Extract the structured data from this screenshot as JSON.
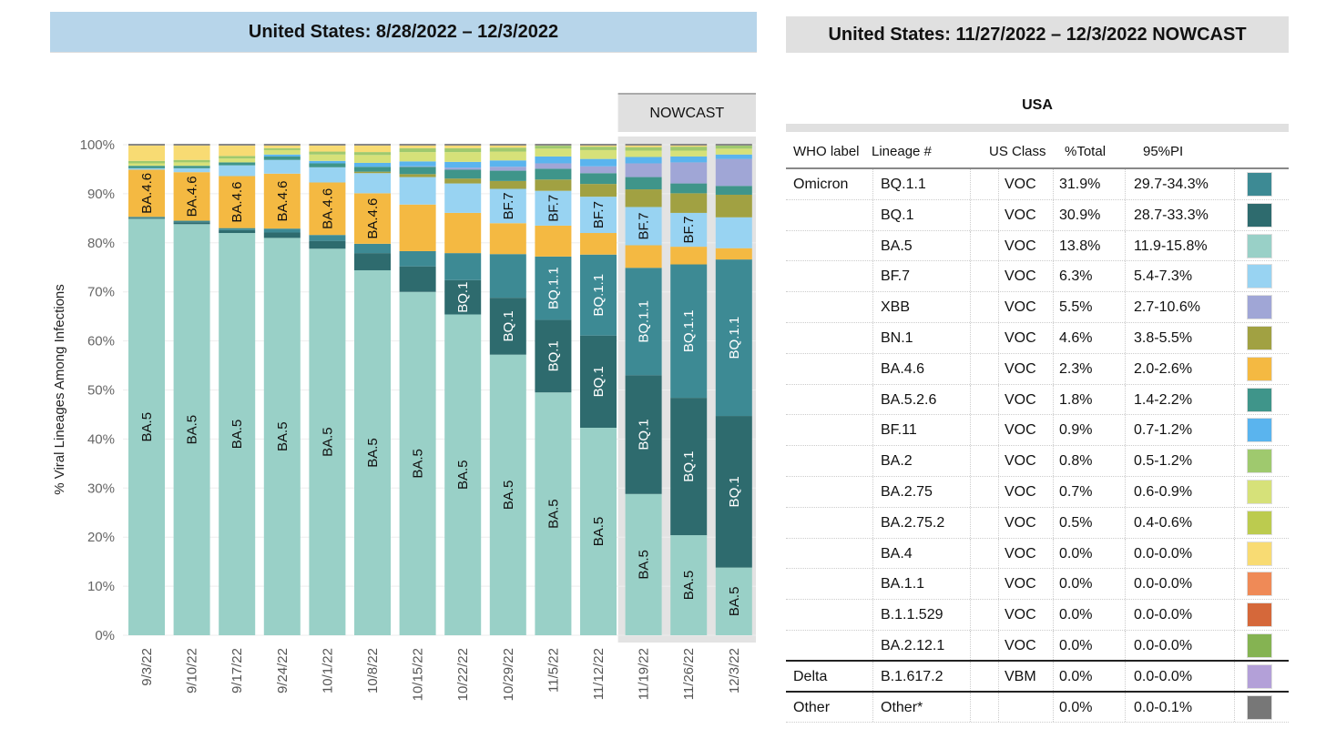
{
  "left_title": "United States: 8/28/2022 – 12/3/2022",
  "right_title": "United States: 11/27/2022 – 12/3/2022 NOWCAST",
  "chart_data": {
    "type": "bar",
    "stacked": true,
    "ylabel": "% Viral Lineages Among Infections",
    "ylim": [
      0,
      100
    ],
    "yticks": [
      "0%",
      "10%",
      "20%",
      "30%",
      "40%",
      "50%",
      "60%",
      "70%",
      "80%",
      "90%",
      "100%"
    ],
    "nowcast_label": "NOWCAST",
    "nowcast_from_index": 11,
    "categories": [
      "9/3/22",
      "9/10/22",
      "9/17/22",
      "9/24/22",
      "10/1/22",
      "10/8/22",
      "10/15/22",
      "10/22/22",
      "10/29/22",
      "11/5/22",
      "11/12/22",
      "11/19/22",
      "11/26/22",
      "12/3/22"
    ],
    "series": [
      {
        "name": "BA.5",
        "color": "#99d0c7",
        "text": "#111",
        "values": [
          84.9,
          83.8,
          82.0,
          81.0,
          78.8,
          74.4,
          70.0,
          65.4,
          57.2,
          49.5,
          42.3,
          28.8,
          20.4,
          13.8
        ]
      },
      {
        "name": "BQ.1",
        "color": "#2e6b6e",
        "text": "#fff",
        "values": [
          0.2,
          0.4,
          0.6,
          1.1,
          1.6,
          3.5,
          5.2,
          7.0,
          11.6,
          14.8,
          18.8,
          24.2,
          28.0,
          30.9
        ]
      },
      {
        "name": "BQ.1.1",
        "color": "#3d8a94",
        "text": "#fff",
        "values": [
          0.2,
          0.3,
          0.4,
          0.8,
          1.2,
          1.9,
          3.1,
          5.5,
          8.9,
          12.9,
          16.5,
          21.9,
          27.2,
          31.9
        ]
      },
      {
        "name": "BA.4.6",
        "color": "#f4b942",
        "text": "#111",
        "values": [
          9.6,
          9.9,
          10.6,
          11.2,
          10.7,
          10.3,
          9.5,
          8.2,
          6.3,
          6.3,
          4.4,
          4.6,
          3.6,
          2.3
        ]
      },
      {
        "name": "BF.7",
        "color": "#98d3f2",
        "text": "#111",
        "values": [
          0.3,
          0.8,
          2.2,
          2.8,
          3.1,
          4.1,
          5.6,
          6.0,
          7.0,
          7.1,
          7.4,
          7.8,
          6.9,
          6.3
        ]
      },
      {
        "name": "BN.1",
        "color": "#a1a142",
        "text": "#111",
        "values": [
          0,
          0,
          0,
          0,
          0,
          0.3,
          0.6,
          1.0,
          1.6,
          2.3,
          2.6,
          3.6,
          4.0,
          4.6
        ]
      },
      {
        "name": "BA.5.2.6",
        "color": "#3f958a",
        "text": "#fff",
        "values": [
          0.5,
          0.5,
          0.6,
          0.7,
          0.8,
          1.0,
          1.5,
          1.8,
          2.1,
          2.2,
          2.2,
          2.5,
          2.0,
          1.8
        ]
      },
      {
        "name": "XBB",
        "color": "#a0a6d6",
        "text": "#111",
        "values": [
          0,
          0,
          0,
          0,
          0,
          0,
          0.1,
          0.4,
          0.8,
          1.1,
          1.4,
          2.8,
          4.3,
          5.5
        ]
      },
      {
        "name": "BF.11",
        "color": "#5ab4ee",
        "text": "#111",
        "values": [
          0,
          0,
          0,
          0.4,
          0.5,
          0.8,
          1.0,
          1.2,
          1.3,
          1.4,
          1.5,
          1.3,
          1.2,
          0.9
        ]
      },
      {
        "name": "BA.2.75",
        "color": "#d6e179",
        "text": "#111",
        "values": [
          0.5,
          0.7,
          0.8,
          0.9,
          1.3,
          1.6,
          1.9,
          2.0,
          1.8,
          1.6,
          1.8,
          1.3,
          1.2,
          1.2
        ]
      },
      {
        "name": "BA.2",
        "color": "#9fc96e",
        "text": "#111",
        "values": [
          0.5,
          0.5,
          0.5,
          0.4,
          0.6,
          0.6,
          0.8,
          0.8,
          0.8,
          0.6,
          0.7,
          0.7,
          0.8,
          0.8
        ]
      },
      {
        "name": "BA.4",
        "color": "#f8db73",
        "text": "#111",
        "values": [
          3.3,
          3.1,
          2.3,
          0.7,
          1.4,
          1.5,
          0.7,
          0.7,
          0.6,
          0.2,
          0.4,
          0.5,
          0.4,
          0
        ]
      }
    ],
    "bar_labels": [
      [
        "BA.5",
        "BA.4.6"
      ],
      [
        "BA.5",
        "BA.4.6"
      ],
      [
        "BA.5",
        "BA.4.6"
      ],
      [
        "BA.5",
        "BA.4.6"
      ],
      [
        "BA.5",
        "BA.4.6"
      ],
      [
        "BA.5",
        "BA.4.6"
      ],
      [
        "BA.5"
      ],
      [
        "BA.5",
        "BQ.1"
      ],
      [
        "BA.5",
        "BQ.1",
        "BF.7"
      ],
      [
        "BA.5",
        "BQ.1",
        "BQ.1.1",
        "BF.7"
      ],
      [
        "BA.5",
        "BQ.1",
        "BQ.1.1",
        "BF.7"
      ],
      [
        "BA.5",
        "BQ.1",
        "BQ.1.1",
        "BF.7"
      ],
      [
        "BA.5",
        "BQ.1",
        "BQ.1.1",
        "BF.7"
      ],
      [
        "BA.5",
        "BQ.1",
        "BQ.1.1"
      ]
    ]
  },
  "table": {
    "region": "USA",
    "headers": [
      "WHO label",
      "Lineage #",
      "US Class",
      "%Total",
      "95%PI"
    ],
    "rows": [
      {
        "who": "Omicron",
        "lineage": "BQ.1.1",
        "cls": "VOC",
        "total": "31.9%",
        "pi": "29.7-34.3%",
        "color": "#3d8a94"
      },
      {
        "who": "",
        "lineage": "BQ.1",
        "cls": "VOC",
        "total": "30.9%",
        "pi": "28.7-33.3%",
        "color": "#2e6b6e"
      },
      {
        "who": "",
        "lineage": "BA.5",
        "cls": "VOC",
        "total": "13.8%",
        "pi": "11.9-15.8%",
        "color": "#99d0c7"
      },
      {
        "who": "",
        "lineage": "BF.7",
        "cls": "VOC",
        "total": "6.3%",
        "pi": "5.4-7.3%",
        "color": "#98d3f2"
      },
      {
        "who": "",
        "lineage": "XBB",
        "cls": "VOC",
        "total": "5.5%",
        "pi": "2.7-10.6%",
        "color": "#a0a6d6"
      },
      {
        "who": "",
        "lineage": "BN.1",
        "cls": "VOC",
        "total": "4.6%",
        "pi": "3.8-5.5%",
        "color": "#a1a142"
      },
      {
        "who": "",
        "lineage": "BA.4.6",
        "cls": "VOC",
        "total": "2.3%",
        "pi": "2.0-2.6%",
        "color": "#f4b942"
      },
      {
        "who": "",
        "lineage": "BA.5.2.6",
        "cls": "VOC",
        "total": "1.8%",
        "pi": "1.4-2.2%",
        "color": "#3f958a"
      },
      {
        "who": "",
        "lineage": "BF.11",
        "cls": "VOC",
        "total": "0.9%",
        "pi": "0.7-1.2%",
        "color": "#5ab4ee"
      },
      {
        "who": "",
        "lineage": "BA.2",
        "cls": "VOC",
        "total": "0.8%",
        "pi": "0.5-1.2%",
        "color": "#9fc96e"
      },
      {
        "who": "",
        "lineage": "BA.2.75",
        "cls": "VOC",
        "total": "0.7%",
        "pi": "0.6-0.9%",
        "color": "#d6e179"
      },
      {
        "who": "",
        "lineage": "BA.2.75.2",
        "cls": "VOC",
        "total": "0.5%",
        "pi": "0.4-0.6%",
        "color": "#bccb4f"
      },
      {
        "who": "",
        "lineage": "BA.4",
        "cls": "VOC",
        "total": "0.0%",
        "pi": "0.0-0.0%",
        "color": "#f8db73"
      },
      {
        "who": "",
        "lineage": "BA.1.1",
        "cls": "VOC",
        "total": "0.0%",
        "pi": "0.0-0.0%",
        "color": "#ef8a57"
      },
      {
        "who": "",
        "lineage": "B.1.1.529",
        "cls": "VOC",
        "total": "0.0%",
        "pi": "0.0-0.0%",
        "color": "#d5683a"
      },
      {
        "who": "",
        "lineage": "BA.2.12.1",
        "cls": "VOC",
        "total": "0.0%",
        "pi": "0.0-0.0%",
        "color": "#85b352",
        "end": true
      },
      {
        "who": "Delta",
        "lineage": "B.1.617.2",
        "cls": "VBM",
        "total": "0.0%",
        "pi": "0.0-0.0%",
        "color": "#b3a0d8",
        "end": true
      },
      {
        "who": "Other",
        "lineage": "Other*",
        "cls": "",
        "total": "0.0%",
        "pi": "0.0-0.1%",
        "color": "#777777"
      }
    ]
  }
}
